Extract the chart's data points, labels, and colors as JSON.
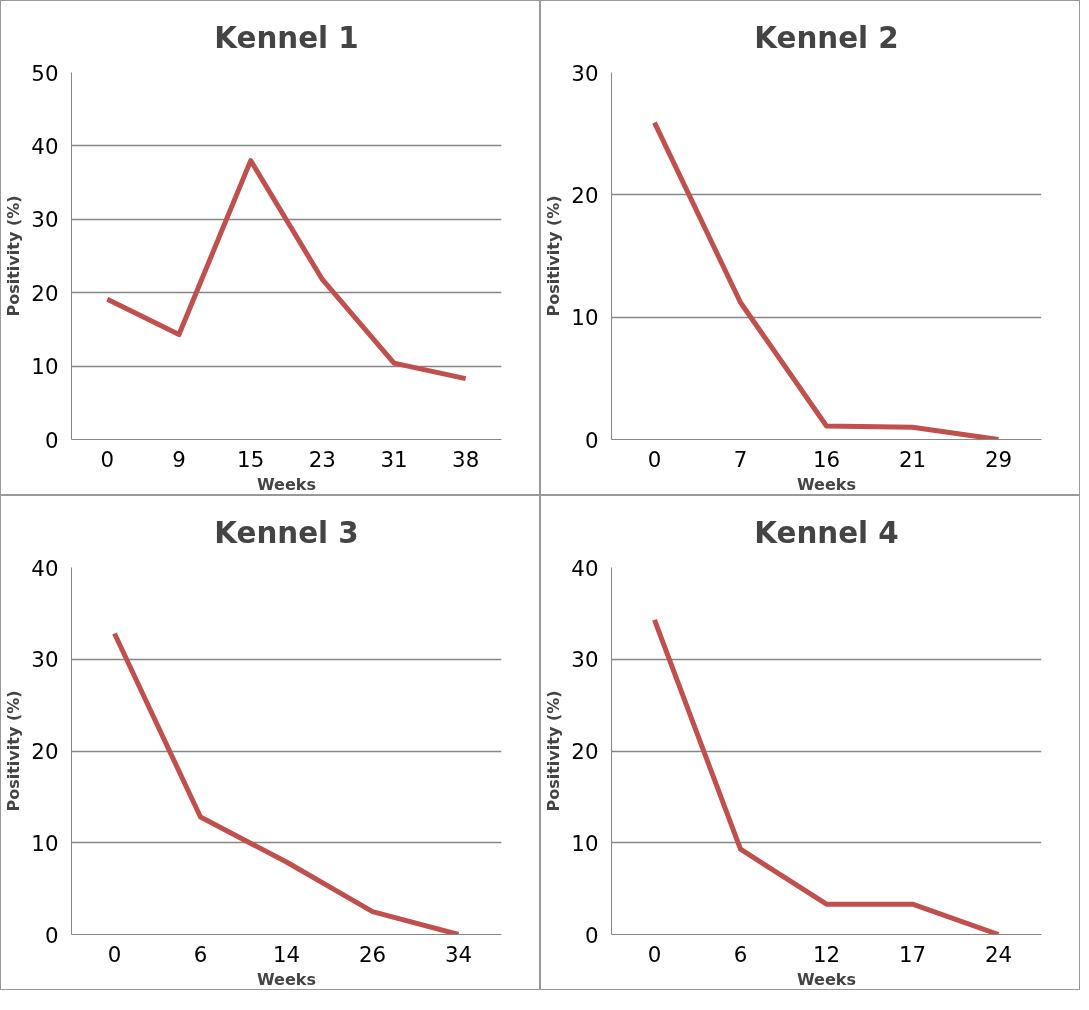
{
  "chart_data": [
    {
      "type": "line",
      "title": "Kennel 1",
      "xlabel": "Weeks",
      "ylabel": "Positivity (%)",
      "categories": [
        "0",
        "9",
        "15",
        "23",
        "31",
        "38"
      ],
      "series": [
        {
          "color": "#c0504d",
          "values": [
            19.1,
            14.3,
            38.0,
            21.8,
            10.4,
            8.3
          ]
        }
      ],
      "ylim": [
        0,
        50
      ],
      "yticks": [
        0,
        10,
        20,
        30,
        40,
        50
      ],
      "grid": "y"
    },
    {
      "type": "line",
      "title": "Kennel 2",
      "xlabel": "Weeks",
      "ylabel": "Positivity (%)",
      "categories": [
        "0",
        "7",
        "16",
        "21",
        "29"
      ],
      "series": [
        {
          "color": "#c0504d",
          "values": [
            25.9,
            11.2,
            1.1,
            1.0,
            0
          ]
        }
      ],
      "ylim": [
        0,
        30
      ],
      "yticks": [
        0,
        10,
        20,
        30
      ],
      "grid": "y"
    },
    {
      "type": "line",
      "title": "Kennel 3",
      "xlabel": "Weeks",
      "ylabel": "Positivity (%)",
      "categories": [
        "0",
        "6",
        "14",
        "26",
        "34"
      ],
      "series": [
        {
          "color": "#c0504d",
          "values": [
            32.8,
            12.8,
            7.9,
            2.5,
            0
          ]
        }
      ],
      "ylim": [
        0,
        40
      ],
      "yticks": [
        0,
        10,
        20,
        30,
        40
      ],
      "grid": "y"
    },
    {
      "type": "line",
      "title": "Kennel 4",
      "xlabel": "Weeks",
      "ylabel": "Positivity (%)",
      "categories": [
        "0",
        "6",
        "12",
        "17",
        "24"
      ],
      "series": [
        {
          "color": "#c0504d",
          "values": [
            34.3,
            9.3,
            3.3,
            3.3,
            0
          ]
        }
      ],
      "ylim": [
        0,
        40
      ],
      "yticks": [
        0,
        10,
        20,
        30,
        40
      ],
      "grid": "y"
    }
  ]
}
